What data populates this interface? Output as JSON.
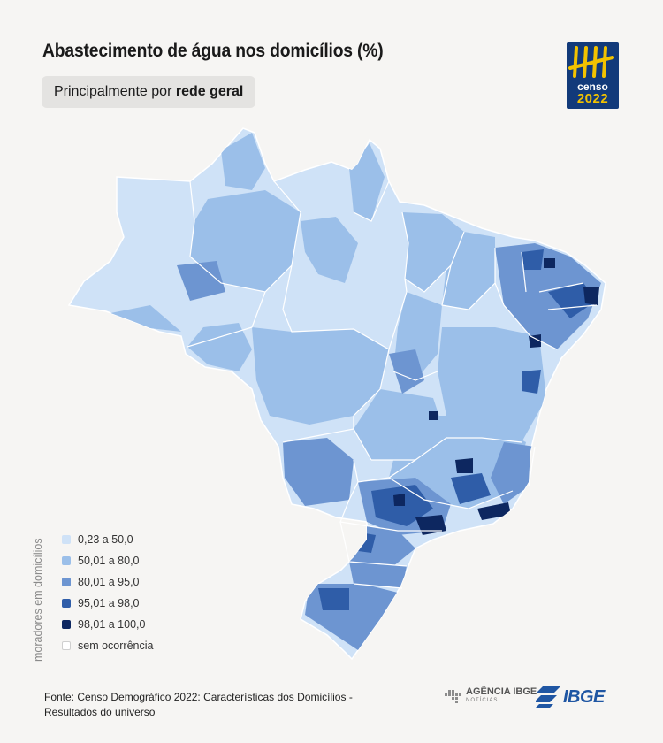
{
  "title": "Abastecimento de água nos domicílios (%)",
  "subtitle": {
    "prefix": "Principalmente por ",
    "emphasis": "rede geral"
  },
  "badge": {
    "word": "censo",
    "year": "2022"
  },
  "legend": {
    "axis_label": "moradores em domicílios",
    "items": [
      {
        "label": "0,23 a 50,0",
        "color": "#cfe2f7"
      },
      {
        "label": "50,01 a 80,0",
        "color": "#9bbfe9"
      },
      {
        "label": "80,01 a 95,0",
        "color": "#6d95d1"
      },
      {
        "label": "95,01 a 98,0",
        "color": "#2f5da8"
      },
      {
        "label": "98,01 a 100,0",
        "color": "#0d2760"
      },
      {
        "label": "sem ocorrência",
        "color": "#ffffff"
      }
    ]
  },
  "source": "Fonte: Censo Demográfico 2022: Características dos Domicílios - Resultados do universo",
  "logos": {
    "agencia": "AGÊNCIA IBGE",
    "agencia_sub": "NOTÍCIAS",
    "ibge": "IBGE"
  },
  "colors": {
    "background": "#f6f5f3",
    "border": "#ffffff",
    "ibge_blue": "#1f56a3",
    "badge_bg": "#123a7a",
    "badge_accent": "#f2c200"
  }
}
